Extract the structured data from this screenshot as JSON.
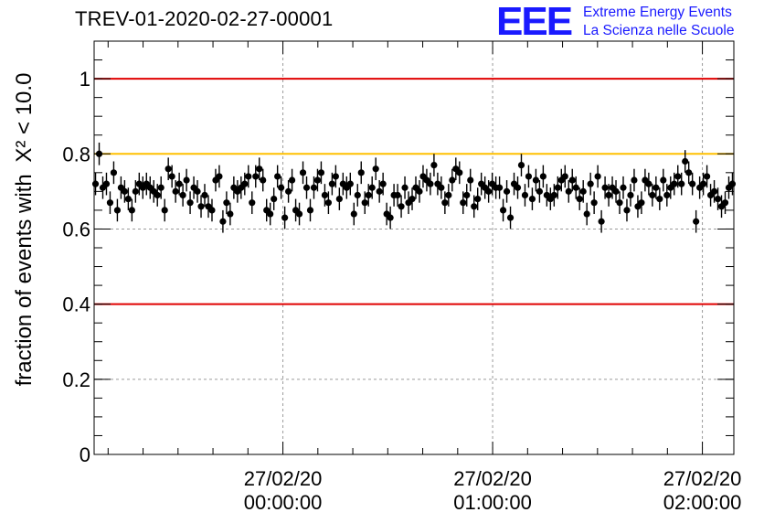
{
  "title": "TREV-01-2020-02-27-00001",
  "logo": {
    "mark": "EEE",
    "line1": "Extreme Energy Events",
    "line2": "La Scienza nelle Scuole"
  },
  "chart_data": {
    "type": "scatter",
    "title": "TREV-01-2020-02-27-00001",
    "xlabel": "",
    "ylabel": "fraction of events with",
    "ylabel_math": "X² < 10.0",
    "xlim_minutes": [
      -54,
      129
    ],
    "ylim": [
      0,
      1.1
    ],
    "y_ticks": [
      0,
      0.2,
      0.4,
      0.6,
      0.8,
      1
    ],
    "y_tick_labels": [
      "0",
      "0.2",
      "0.4",
      "0.6",
      "0.8",
      "1"
    ],
    "x_ticks": [
      {
        "t": 0,
        "date": "27/02/20",
        "time": "00:00:00"
      },
      {
        "t": 60,
        "date": "27/02/20",
        "time": "01:00:00"
      },
      {
        "t": 120,
        "date": "27/02/20",
        "time": "02:00:00"
      }
    ],
    "grid": true,
    "reference_lines": [
      {
        "y": 1.0,
        "color": "#e00000"
      },
      {
        "y": 0.8,
        "color": "#ffc000"
      },
      {
        "y": 0.4,
        "color": "#e00000"
      }
    ],
    "point_color": "#000000",
    "error_bar_halfwidth": 0.03,
    "series": [
      {
        "values": [
          0.72,
          0.8,
          0.71,
          0.72,
          0.67,
          0.75,
          0.65,
          0.71,
          0.7,
          0.68,
          0.65,
          0.7,
          0.72,
          0.71,
          0.72,
          0.71,
          0.7,
          0.69,
          0.71,
          0.65,
          0.76,
          0.74,
          0.7,
          0.72,
          0.69,
          0.73,
          0.67,
          0.71,
          0.7,
          0.66,
          0.69,
          0.66,
          0.65,
          0.73,
          0.74,
          0.62,
          0.67,
          0.64,
          0.71,
          0.7,
          0.71,
          0.72,
          0.74,
          0.67,
          0.74,
          0.76,
          0.73,
          0.65,
          0.64,
          0.68,
          0.74,
          0.71,
          0.63,
          0.7,
          0.73,
          0.65,
          0.64,
          0.75,
          0.71,
          0.65,
          0.71,
          0.73,
          0.75,
          0.69,
          0.67,
          0.72,
          0.74,
          0.68,
          0.72,
          0.71,
          0.72,
          0.64,
          0.69,
          0.75,
          0.67,
          0.69,
          0.71,
          0.76,
          0.7,
          0.72,
          0.64,
          0.63,
          0.69,
          0.69,
          0.66,
          0.71,
          0.67,
          0.68,
          0.71,
          0.7,
          0.74,
          0.73,
          0.72,
          0.77,
          0.72,
          0.71,
          0.67,
          0.69,
          0.73,
          0.76,
          0.75,
          0.67,
          0.69,
          0.73,
          0.66,
          0.68,
          0.72,
          0.71,
          0.7,
          0.72,
          0.71,
          0.71,
          0.65,
          0.7,
          0.63,
          0.72,
          0.71,
          0.77,
          0.69,
          0.74,
          0.68,
          0.73,
          0.7,
          0.74,
          0.69,
          0.68,
          0.69,
          0.71,
          0.73,
          0.74,
          0.7,
          0.73,
          0.71,
          0.68,
          0.7,
          0.64,
          0.72,
          0.67,
          0.74,
          0.62,
          0.71,
          0.69,
          0.71,
          0.7,
          0.67,
          0.71,
          0.65,
          0.69,
          0.73,
          0.66,
          0.67,
          0.73,
          0.72,
          0.69,
          0.71,
          0.68,
          0.73,
          0.69,
          0.71,
          0.72,
          0.74,
          0.72,
          0.78,
          0.75,
          0.72,
          0.62,
          0.71,
          0.72,
          0.74,
          0.69,
          0.7,
          0.68,
          0.66,
          0.67,
          0.71,
          0.72
        ]
      }
    ]
  }
}
